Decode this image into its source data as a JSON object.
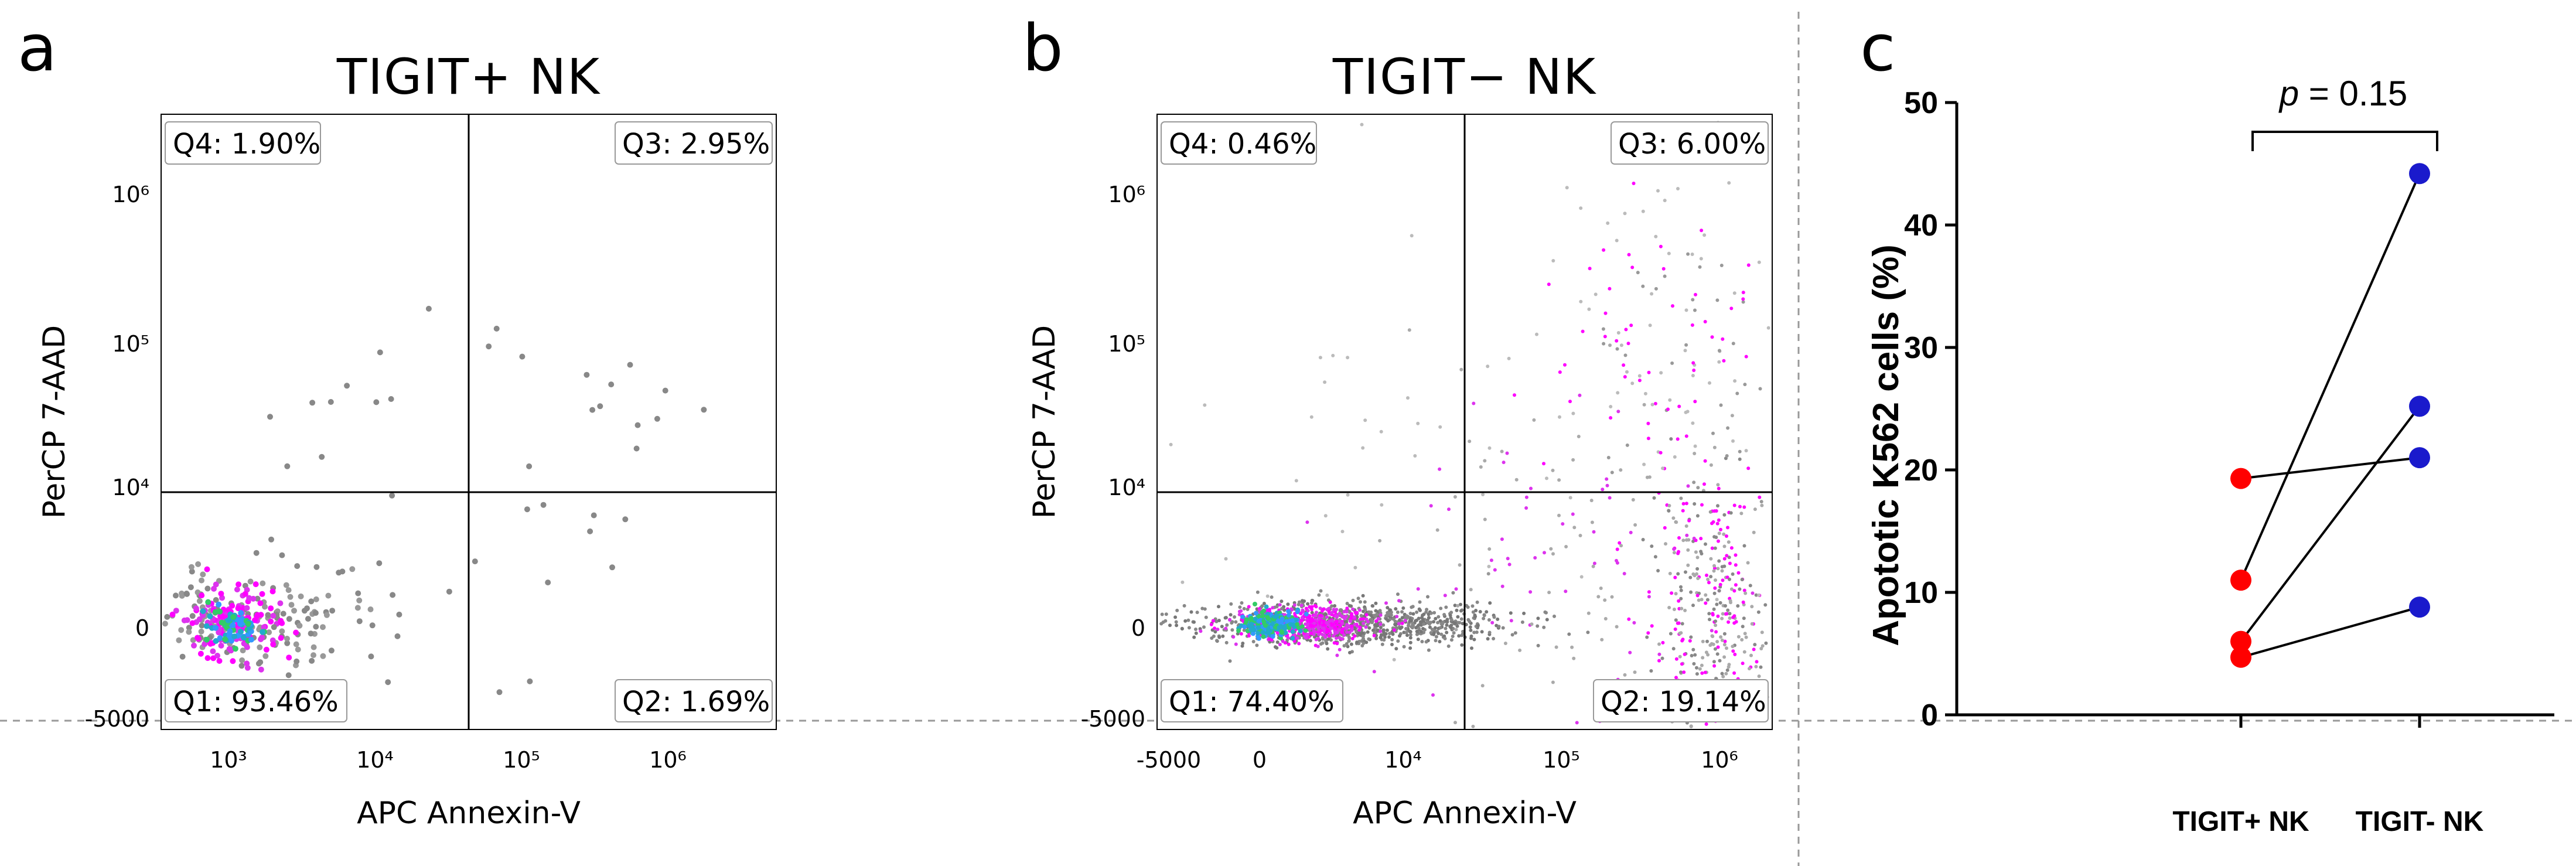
{
  "chart_data": [
    {
      "panel": "a",
      "type": "scatter",
      "title": "TIGIT+ NK",
      "xlabel": "APC Annexin-V",
      "ylabel": "PerCP 7-AAD",
      "x_ticks": [
        "10³",
        "10⁴",
        "10⁵",
        "10⁶"
      ],
      "y_ticks": [
        "10⁶",
        "10⁵",
        "10⁴",
        "0",
        "-5000"
      ],
      "quadrants": [
        {
          "name": "Q4",
          "text": "Q4: 1.90%",
          "value": 1.9,
          "position": "top-left"
        },
        {
          "name": "Q3",
          "text": "Q3: 2.95%",
          "value": 2.95,
          "position": "top-right"
        },
        {
          "name": "Q1",
          "text": "Q1: 93.46%",
          "value": 93.46,
          "position": "bottom-left"
        },
        {
          "name": "Q2",
          "text": "Q2: 1.69%",
          "value": 1.69,
          "position": "bottom-right"
        }
      ]
    },
    {
      "panel": "b",
      "type": "scatter",
      "title": "TIGIT− NK",
      "xlabel": "APC Annexin-V",
      "ylabel": "PerCP 7-AAD",
      "x_ticks": [
        "-5000",
        "0",
        "10⁴",
        "10⁵",
        "10⁶"
      ],
      "y_ticks": [
        "10⁶",
        "10⁵",
        "10⁴",
        "0",
        "-5000"
      ],
      "quadrants": [
        {
          "name": "Q4",
          "text": "Q4: 0.46%",
          "value": 0.46,
          "position": "top-left"
        },
        {
          "name": "Q3",
          "text": "Q3: 6.00%",
          "value": 6.0,
          "position": "top-right"
        },
        {
          "name": "Q1",
          "text": "Q1: 74.40%",
          "value": 74.4,
          "position": "bottom-left"
        },
        {
          "name": "Q2",
          "text": "Q2: 19.14%",
          "value": 19.14,
          "position": "bottom-right"
        }
      ]
    },
    {
      "panel": "c",
      "type": "scatter",
      "subtype": "paired-dot",
      "ylabel": "Apototic K562 cells (%)",
      "categories": [
        "TIGIT+ NK",
        "TIGIT- NK"
      ],
      "ylim": [
        0,
        50
      ],
      "y_ticks": [
        0,
        10,
        20,
        30,
        40,
        50
      ],
      "annotation": {
        "p_label": "p",
        "p_text": " = 0.15"
      },
      "pairs": [
        {
          "tigit_pos": 19.3,
          "tigit_neg": 21.0
        },
        {
          "tigit_pos": 11.0,
          "tigit_neg": 44.2
        },
        {
          "tigit_pos": 6.0,
          "tigit_neg": 25.2
        },
        {
          "tigit_pos": 4.7,
          "tigit_neg": 8.8
        }
      ],
      "colors": {
        "tigit_pos": "#ff0000",
        "tigit_neg": "#1a1acc"
      }
    }
  ]
}
